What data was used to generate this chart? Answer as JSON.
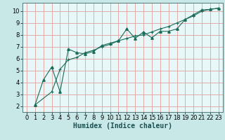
{
  "xlabel": "Humidex (Indice chaleur)",
  "bg_color": "#c8e8e8",
  "plot_bg_color": "#e8f8f8",
  "line_color": "#1a6b5a",
  "grid_color": "#e0a0a0",
  "xlim": [
    -0.5,
    23.5
  ],
  "ylim": [
    1.5,
    10.7
  ],
  "xticks": [
    0,
    1,
    2,
    3,
    4,
    5,
    6,
    7,
    8,
    9,
    10,
    11,
    12,
    13,
    14,
    15,
    16,
    17,
    18,
    19,
    20,
    21,
    22,
    23
  ],
  "yticks": [
    2,
    3,
    4,
    5,
    6,
    7,
    8,
    9,
    10
  ],
  "line1_x": [
    1,
    2,
    3,
    4,
    5,
    6,
    7,
    8,
    9,
    10,
    11,
    12,
    13,
    14,
    15,
    16,
    17,
    18,
    19,
    20,
    21,
    22,
    23
  ],
  "line1_y": [
    2.1,
    4.2,
    5.3,
    3.2,
    6.8,
    6.5,
    6.4,
    6.6,
    7.1,
    7.3,
    7.5,
    8.5,
    7.7,
    8.25,
    7.75,
    8.3,
    8.3,
    8.5,
    9.3,
    9.7,
    10.1,
    10.15,
    10.25
  ],
  "line2_x": [
    1,
    3,
    4,
    5,
    6,
    7,
    8,
    9,
    10,
    11,
    12,
    13,
    14,
    15,
    16,
    17,
    18,
    19,
    20,
    21,
    22,
    23
  ],
  "line2_y": [
    2.1,
    3.2,
    5.1,
    5.9,
    6.1,
    6.5,
    6.7,
    7.0,
    7.2,
    7.5,
    7.7,
    7.9,
    8.0,
    8.25,
    8.5,
    8.7,
    9.0,
    9.3,
    9.6,
    10.0,
    10.15,
    10.25
  ],
  "xlabel_fontsize": 7,
  "tick_fontsize": 6
}
